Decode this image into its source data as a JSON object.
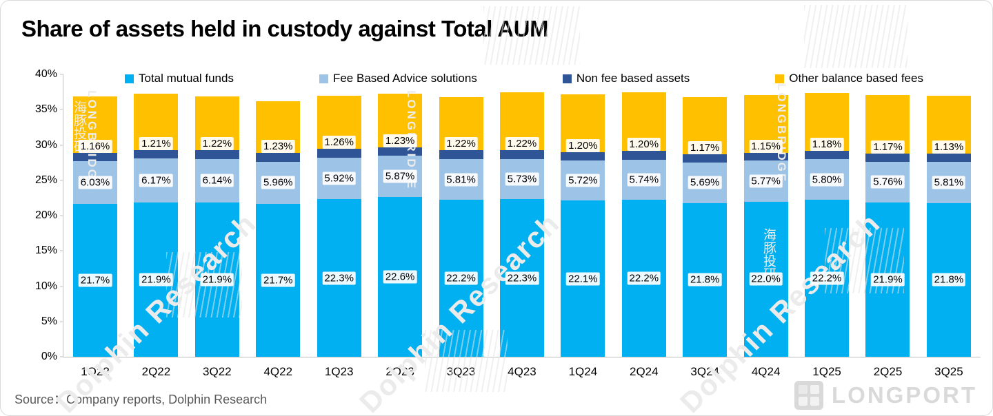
{
  "title": "Share of assets held in custody against Total AUM",
  "source": "Source：Company reports, Dolphin Research",
  "colors": {
    "total_mutual_funds": "#00B0F0",
    "fee_based_advice": "#9DC3E6",
    "non_fee_based": "#2F5597",
    "other_balance_fees": "#FFC000",
    "axis": "#BFBFBF",
    "source_text": "#595959"
  },
  "chart_data": {
    "type": "bar",
    "stacked": true,
    "title": "Share of assets held in custody against Total AUM",
    "xlabel": "",
    "ylabel": "",
    "ylim": [
      0,
      40
    ],
    "ytick_labels": [
      "40%",
      "35%",
      "30%",
      "25%",
      "20%",
      "15%",
      "10%",
      "5%",
      "0%"
    ],
    "grid": false,
    "legend_position": "top",
    "categories": [
      "1Q22",
      "2Q22",
      "3Q22",
      "4Q22",
      "1Q23",
      "2Q23",
      "3Q23",
      "4Q23",
      "1Q24",
      "2Q24",
      "3Q24",
      "4Q24",
      "1Q25",
      "2Q25",
      "3Q25"
    ],
    "series": [
      {
        "name": "Total mutual funds",
        "color_key": "total_mutual_funds",
        "values": [
          21.7,
          21.9,
          21.9,
          21.7,
          22.3,
          22.6,
          22.2,
          22.3,
          22.1,
          22.2,
          21.8,
          22.0,
          22.2,
          21.9,
          21.8
        ],
        "labels": [
          "21.7%",
          "21.9%",
          "21.9%",
          "21.7%",
          "22.3%",
          "22.6%",
          "22.2%",
          "22.3%",
          "22.1%",
          "22.2%",
          "21.8%",
          "22.0%",
          "22.2%",
          "21.9%",
          "21.8%"
        ],
        "label_position": "center"
      },
      {
        "name": "Fee Based Advice solutions",
        "color_key": "fee_based_advice",
        "values": [
          6.03,
          6.17,
          6.14,
          5.96,
          5.92,
          5.87,
          5.81,
          5.73,
          5.72,
          5.74,
          5.69,
          5.77,
          5.8,
          5.76,
          5.81
        ],
        "labels": [
          "6.03%",
          "6.17%",
          "6.14%",
          "5.96%",
          "5.92%",
          "5.87%",
          "5.81%",
          "5.73%",
          "5.72%",
          "5.74%",
          "5.69%",
          "5.77%",
          "5.80%",
          "5.76%",
          "5.81%"
        ],
        "label_position": "center"
      },
      {
        "name": "Non fee based assets",
        "color_key": "non_fee_based",
        "values": [
          1.16,
          1.21,
          1.22,
          1.23,
          1.26,
          1.23,
          1.22,
          1.22,
          1.2,
          1.2,
          1.17,
          1.15,
          1.18,
          1.17,
          1.13
        ],
        "labels": [
          "1.16%",
          "1.21%",
          "1.22%",
          "1.23%",
          "1.26%",
          "1.23%",
          "1.22%",
          "1.22%",
          "1.20%",
          "1.20%",
          "1.17%",
          "1.15%",
          "1.18%",
          "1.17%",
          "1.13%"
        ],
        "label_position": "above"
      },
      {
        "name": "Other balance based fees",
        "color_key": "other_balance_fees",
        "values": [
          8.0,
          8.0,
          7.6,
          7.3,
          7.5,
          7.6,
          7.6,
          8.2,
          8.2,
          8.3,
          8.1,
          8.2,
          8.2,
          8.2,
          8.2
        ],
        "estimated": true,
        "labels": null,
        "label_position": "none"
      }
    ]
  },
  "watermarks": {
    "diagonal_text": "Dolphin Research",
    "vertical_text": "LONGBRIDGE",
    "cjk_text": "海豚投研",
    "logo_text": "LONGPORT"
  }
}
